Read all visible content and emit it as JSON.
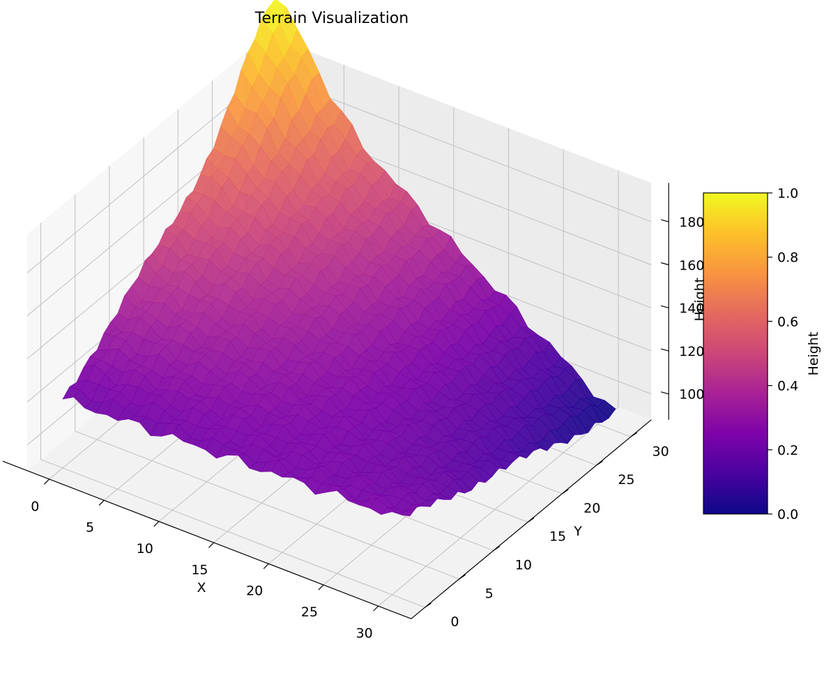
{
  "chart_data": {
    "type": "surface",
    "title": "Terrain Visualization",
    "xlabel": "X",
    "ylabel": "Y",
    "zlabel": "Height",
    "x_ticks": [
      "0",
      "5",
      "10",
      "15",
      "20",
      "25",
      "30"
    ],
    "y_ticks": [
      "0",
      "5",
      "10",
      "15",
      "20",
      "25",
      "30"
    ],
    "z_ticks": [
      "100",
      "120",
      "140",
      "160",
      "180"
    ],
    "xlim": [
      -2,
      33
    ],
    "ylim": [
      -2,
      33
    ],
    "zlim": [
      88,
      198
    ],
    "grid": true,
    "colormap": "plasma",
    "colorbar": {
      "label": "Height",
      "ticks": [
        "0.0",
        "0.2",
        "0.4",
        "0.6",
        "0.8",
        "1.0"
      ],
      "range": [
        0,
        1
      ]
    },
    "corner_heights": {
      "x0_y0": 120,
      "x31_y0": 125,
      "x0_y31": 197,
      "x31_y31": 92
    },
    "grid_size": [
      32,
      32
    ]
  }
}
